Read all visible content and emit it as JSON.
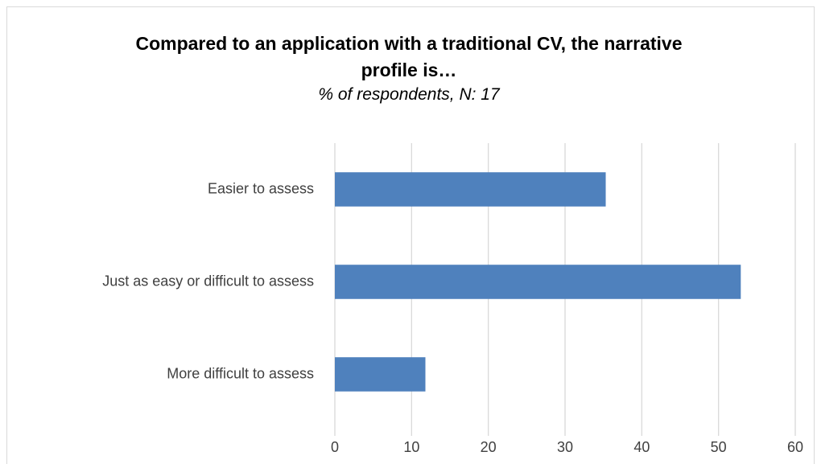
{
  "chart_data": {
    "type": "bar",
    "orientation": "horizontal",
    "title": "Compared to an application with a traditional CV, the narrative profile is…",
    "subtitle": "% of respondents, N: 17",
    "categories": [
      "Easier to assess",
      "Just as easy or difficult to assess",
      "More difficult to assess"
    ],
    "values": [
      35.3,
      52.9,
      11.8
    ],
    "color": "#4f81bd",
    "xlim": [
      0,
      60
    ],
    "xticks": [
      0,
      10,
      20,
      30,
      40,
      50,
      60
    ],
    "grid": true
  }
}
